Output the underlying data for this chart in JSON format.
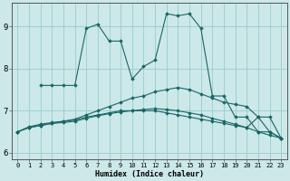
{
  "xlabel": "Humidex (Indice chaleur)",
  "bg_color": "#cce8e8",
  "grid_color": "#99cccc",
  "line_color": "#1a6666",
  "xlim": [
    -0.5,
    23.5
  ],
  "ylim": [
    5.85,
    9.55
  ],
  "xticks": [
    0,
    1,
    2,
    3,
    4,
    5,
    6,
    7,
    8,
    9,
    10,
    11,
    12,
    13,
    14,
    15,
    16,
    17,
    18,
    19,
    20,
    21,
    22,
    23
  ],
  "yticks": [
    6,
    7,
    8,
    9
  ],
  "lines": [
    {
      "x": [
        2,
        3,
        4,
        5,
        6,
        7,
        8,
        9,
        10,
        11,
        12,
        13,
        14,
        15,
        16,
        17,
        18,
        19,
        20,
        21,
        22,
        23
      ],
      "y": [
        7.6,
        7.6,
        7.6,
        7.6,
        8.95,
        9.05,
        8.65,
        8.65,
        7.75,
        8.05,
        8.2,
        9.3,
        9.25,
        9.3,
        8.95,
        7.35,
        7.35,
        6.85,
        6.85,
        6.5,
        6.5,
        6.35
      ]
    },
    {
      "x": [
        0,
        1,
        2,
        3,
        4,
        5,
        6,
        7,
        8,
        9,
        10,
        11,
        12,
        13,
        14,
        15,
        16,
        17,
        18,
        19,
        20,
        21,
        22,
        23
      ],
      "y": [
        6.5,
        6.6,
        6.65,
        6.7,
        6.75,
        6.8,
        6.9,
        7.0,
        7.1,
        7.2,
        7.3,
        7.35,
        7.45,
        7.5,
        7.55,
        7.5,
        7.4,
        7.3,
        7.2,
        7.15,
        7.1,
        6.85,
        6.5,
        6.35
      ]
    },
    {
      "x": [
        0,
        1,
        2,
        3,
        4,
        5,
        6,
        7,
        8,
        9,
        10,
        11,
        12,
        13,
        14,
        15,
        16,
        17,
        18,
        19,
        20,
        21,
        22,
        23
      ],
      "y": [
        6.5,
        6.6,
        6.65,
        6.7,
        6.72,
        6.75,
        6.82,
        6.88,
        6.93,
        6.97,
        7.0,
        7.03,
        7.05,
        7.03,
        7.0,
        6.95,
        6.9,
        6.82,
        6.75,
        6.68,
        6.6,
        6.5,
        6.42,
        6.35
      ]
    },
    {
      "x": [
        0,
        1,
        2,
        3,
        4,
        5,
        6,
        7,
        8,
        9,
        10,
        11,
        12,
        13,
        14,
        15,
        16,
        17,
        18,
        19,
        20,
        21,
        22,
        23
      ],
      "y": [
        6.5,
        6.62,
        6.68,
        6.72,
        6.75,
        6.78,
        6.85,
        6.9,
        6.95,
        7.0,
        7.0,
        7.0,
        7.0,
        6.95,
        6.9,
        6.85,
        6.8,
        6.75,
        6.7,
        6.65,
        6.6,
        6.85,
        6.85,
        6.35
      ]
    }
  ]
}
